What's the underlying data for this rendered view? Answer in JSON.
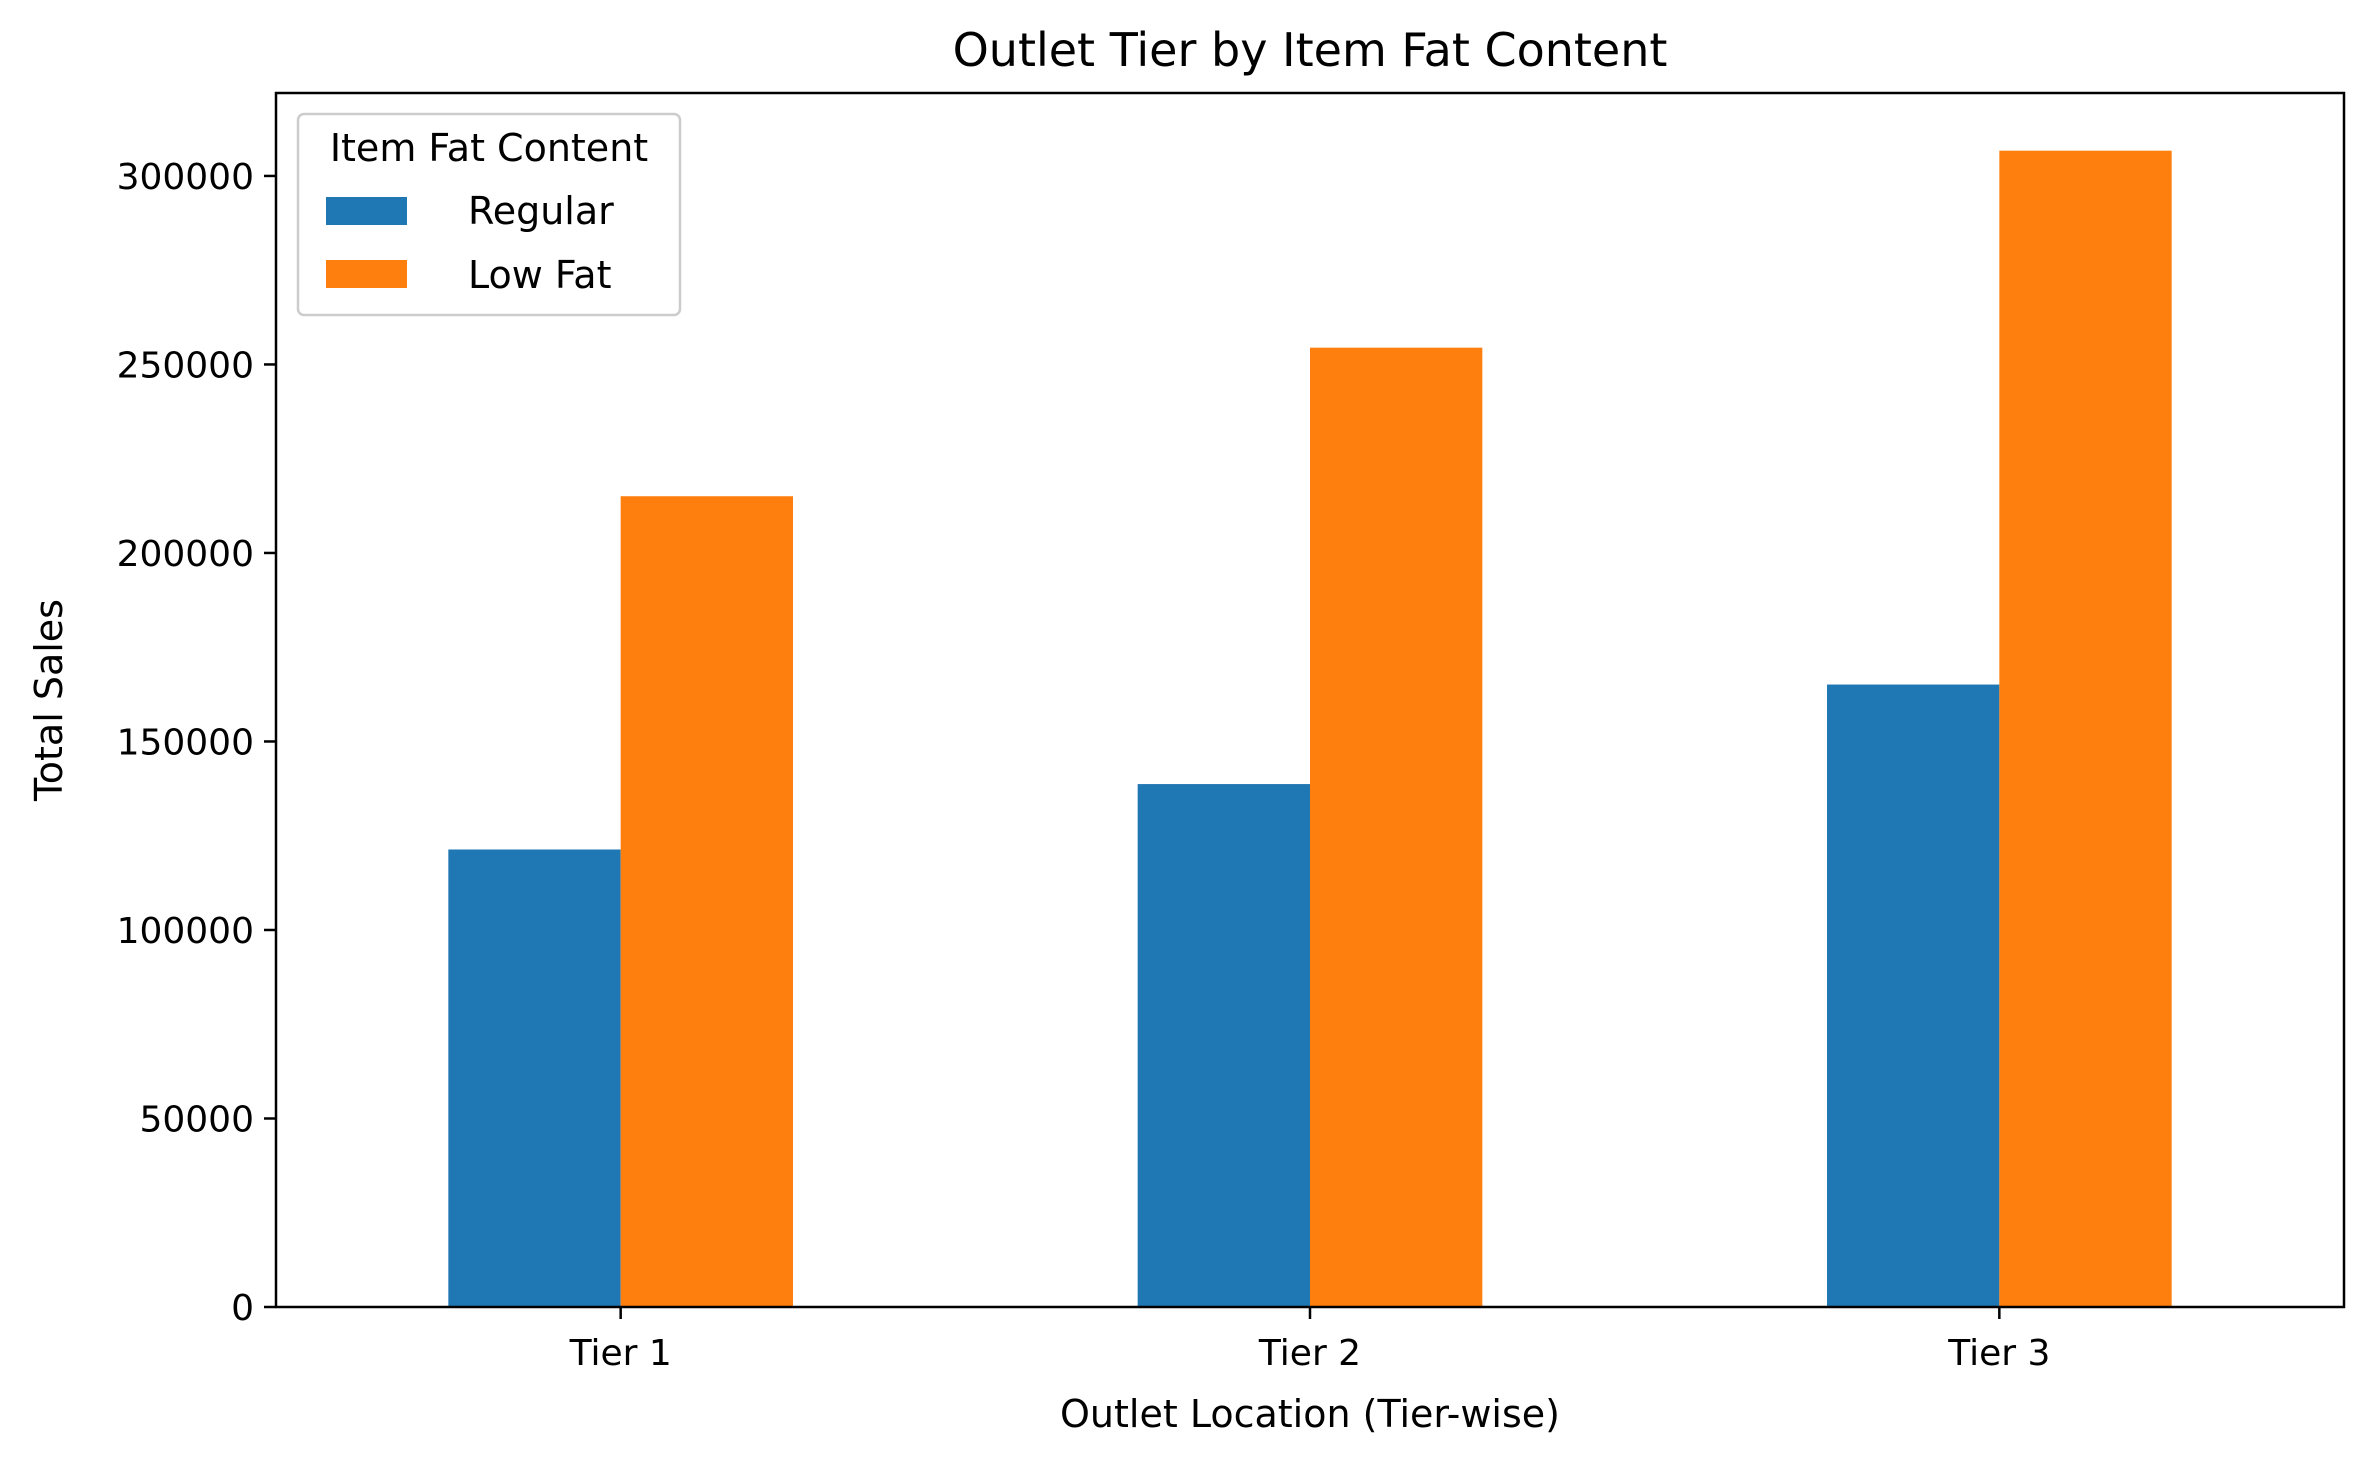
{
  "chart_data": {
    "type": "bar",
    "title": "Outlet Tier by Item Fat Content",
    "xlabel": "Outlet Location (Tier-wise)",
    "ylabel": "Total Sales",
    "categories": [
      "Tier 1",
      "Tier 2",
      "Tier 3"
    ],
    "series": [
      {
        "name": "Regular",
        "color": "#1f77b4",
        "values": [
          121350,
          138700,
          165100
        ]
      },
      {
        "name": "Low Fat",
        "color": "#ff7f0e",
        "values": [
          215050,
          254450,
          306700
        ]
      }
    ],
    "ylim": [
      0,
      322000
    ],
    "yticks": [
      0,
      50000,
      100000,
      150000,
      200000,
      250000,
      300000
    ],
    "ytick_labels": [
      "0",
      "50000",
      "100000",
      "150000",
      "200000",
      "250000",
      "300000"
    ],
    "legend": {
      "title": "Item Fat Content",
      "position": "top-left"
    },
    "grid": false
  }
}
